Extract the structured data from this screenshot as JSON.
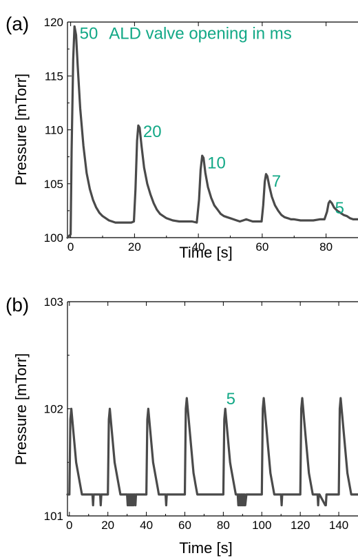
{
  "colors": {
    "line": "#4a4a4a",
    "annotation": "#12a886",
    "axis": "#000000"
  },
  "chart_data": [
    {
      "type": "line",
      "panel_label": "(a)",
      "xlabel": "Time [s]",
      "ylabel": "Pressure [mTorr]",
      "xlim": [
        -1,
        90
      ],
      "ylim": [
        100,
        120
      ],
      "xticks": [
        0,
        20,
        40,
        60,
        80
      ],
      "yticks": [
        100,
        105,
        110,
        115,
        120
      ],
      "grid": false,
      "series": [
        {
          "x": [
            -1,
            0,
            0.3,
            0.8,
            1.2,
            1.7,
            2.2,
            3,
            4,
            5,
            6,
            7,
            8,
            9,
            10,
            11,
            12,
            13,
            14,
            15,
            16,
            17,
            18,
            19,
            19.8,
            20.3,
            20.8,
            21.2,
            21.6,
            22.2,
            23,
            24,
            25,
            26,
            27,
            28,
            29,
            30,
            32,
            34,
            36,
            38,
            39.5,
            40.2,
            40.7,
            41.2,
            41.6,
            42.2,
            43,
            44,
            45,
            46,
            47,
            48,
            49,
            50,
            51,
            52,
            53,
            54,
            55,
            56,
            57,
            58,
            59,
            59.8,
            60.3,
            60.8,
            61.2,
            61.6,
            62.2,
            63,
            64,
            65,
            66,
            67,
            68,
            69,
            70,
            72,
            74,
            76,
            78,
            79.5,
            80.3,
            80.8,
            81.2,
            81.8,
            82.5,
            83.5,
            84.5,
            85.5,
            86.5,
            87.5,
            88.5,
            90
          ],
          "y": [
            100.0,
            100.3,
            108,
            116.5,
            119.6,
            118.8,
            116,
            112,
            108.5,
            106,
            104.5,
            103.5,
            102.8,
            102.3,
            102,
            101.8,
            101.6,
            101.5,
            101.4,
            101.4,
            101.4,
            101.4,
            101.4,
            101.4,
            101.5,
            104.5,
            109,
            110.4,
            110.2,
            108.5,
            106.5,
            105,
            104,
            103.2,
            102.6,
            102.2,
            102,
            101.8,
            101.6,
            101.5,
            101.5,
            101.5,
            101.4,
            103.5,
            106.3,
            107.6,
            107.4,
            106,
            104.7,
            103.7,
            103,
            102.6,
            102.2,
            102,
            101.9,
            101.8,
            101.7,
            101.6,
            101.5,
            101.6,
            101.7,
            101.6,
            101.5,
            101.5,
            101.5,
            101.5,
            103,
            105.2,
            105.9,
            105.7,
            104.8,
            103.8,
            103,
            102.5,
            102.1,
            101.9,
            101.8,
            101.7,
            101.7,
            101.6,
            101.6,
            101.6,
            101.7,
            101.7,
            102.4,
            103.2,
            103.4,
            103.2,
            102.8,
            102.5,
            102.3,
            102.1,
            102,
            101.8,
            101.7,
            101.7
          ]
        }
      ],
      "annotations": [
        {
          "text": "50",
          "x": 2.8,
          "y": 119.0
        },
        {
          "text": "ALD valve opening in ms",
          "x": 12,
          "y": 119.0
        },
        {
          "text": "20",
          "x": 22.7,
          "y": 109.9
        },
        {
          "text": "10",
          "x": 42.8,
          "y": 107.0
        },
        {
          "text": "7",
          "x": 63.0,
          "y": 105.3
        },
        {
          "text": "5",
          "x": 82.8,
          "y": 102.8
        }
      ]
    },
    {
      "type": "line",
      "panel_label": "(b)",
      "xlabel": "Time [s]",
      "ylabel": "Pressure [mTorr]",
      "xlim": [
        -1,
        150
      ],
      "ylim": [
        101,
        103
      ],
      "xticks": [
        0,
        20,
        40,
        60,
        80,
        100,
        120,
        140
      ],
      "yticks": [
        101,
        102,
        103
      ],
      "grid": false,
      "series": [
        {
          "x": [
            -1,
            0,
            0.5,
            1.0,
            1.5,
            2.0,
            2.5,
            3.0,
            3.5,
            4.0,
            4.5,
            5.0,
            5.5,
            6.0,
            6.5,
            7.0,
            8,
            12,
            12.3,
            12.6,
            13,
            16,
            16.3,
            16.6,
            17,
            20,
            20.5,
            21.0,
            21.5,
            22.0,
            22.5,
            23.0,
            23.5,
            24.0,
            24.5,
            25.0,
            25.5,
            26.0,
            26.5,
            27.0,
            28,
            30,
            30.3,
            30.6,
            30.9,
            31.2,
            31.5,
            31.8,
            32.1,
            32.4,
            32.7,
            33.0,
            33.3,
            33.6,
            34,
            34.3,
            34.6,
            35,
            40,
            40.5,
            41.0,
            41.5,
            42.0,
            42.5,
            43.0,
            43.5,
            44.0,
            44.5,
            45.0,
            45.5,
            46.0,
            46.5,
            47.0,
            48,
            50,
            50.3,
            50.6,
            51,
            60,
            60.5,
            61.0,
            61.5,
            62.0,
            62.5,
            63.0,
            63.5,
            64.0,
            64.5,
            65.0,
            65.5,
            66.0,
            66.5,
            67.0,
            68,
            80,
            80.5,
            81.0,
            81.5,
            82.0,
            82.5,
            83.0,
            83.5,
            84.0,
            84.5,
            85.0,
            85.5,
            86.0,
            86.5,
            87.0,
            87.5,
            87.8,
            88.1,
            88.4,
            88.7,
            89.0,
            89.3,
            89.6,
            89.9,
            90.2,
            90.5,
            90.8,
            91.1,
            91.4,
            92,
            100,
            100.5,
            101.0,
            101.5,
            102.0,
            102.5,
            103.0,
            103.5,
            104.0,
            104.5,
            105.0,
            105.5,
            106.0,
            106.5,
            107.0,
            108,
            110,
            110.3,
            110.6,
            111,
            120,
            120.5,
            121.0,
            121.5,
            122.0,
            122.5,
            123.0,
            123.5,
            124.0,
            124.5,
            125.0,
            125.5,
            126.0,
            126.5,
            127.0,
            128,
            129,
            129.3,
            129.6,
            130,
            133,
            133.3,
            133.6,
            134,
            140,
            140.5,
            141.0,
            141.5,
            142.0,
            142.5,
            143.0,
            143.5,
            144.0,
            144.5,
            145.0,
            145.5,
            146.0,
            146.5,
            147.0,
            148,
            150
          ],
          "y": [
            101.2,
            101.2,
            101.9,
            102.0,
            101.9,
            101.8,
            101.7,
            101.6,
            101.5,
            101.45,
            101.4,
            101.35,
            101.3,
            101.25,
            101.2,
            101.2,
            101.2,
            101.2,
            101.1,
            101.2,
            101.2,
            101.2,
            101.1,
            101.2,
            101.2,
            101.2,
            101.9,
            102.0,
            101.9,
            101.8,
            101.7,
            101.6,
            101.5,
            101.45,
            101.4,
            101.35,
            101.3,
            101.25,
            101.2,
            101.2,
            101.2,
            101.2,
            101.1,
            101.2,
            101.1,
            101.2,
            101.1,
            101.2,
            101.1,
            101.2,
            101.1,
            101.2,
            101.1,
            101.2,
            101.2,
            101.1,
            101.2,
            101.2,
            101.2,
            101.9,
            102.0,
            101.9,
            101.8,
            101.7,
            101.6,
            101.5,
            101.45,
            101.4,
            101.35,
            101.3,
            101.25,
            101.2,
            101.2,
            101.2,
            101.2,
            101.1,
            101.2,
            101.2,
            101.2,
            102.0,
            102.1,
            102.0,
            101.9,
            101.8,
            101.7,
            101.6,
            101.5,
            101.4,
            101.35,
            101.3,
            101.25,
            101.2,
            101.2,
            101.2,
            101.2,
            101.9,
            102.0,
            101.9,
            101.8,
            101.7,
            101.6,
            101.5,
            101.45,
            101.4,
            101.35,
            101.3,
            101.25,
            101.2,
            101.2,
            101.2,
            101.1,
            101.2,
            101.1,
            101.2,
            101.1,
            101.2,
            101.1,
            101.2,
            101.1,
            101.2,
            101.1,
            101.2,
            101.1,
            101.2,
            101.2,
            102.0,
            102.1,
            102.0,
            101.9,
            101.8,
            101.7,
            101.6,
            101.5,
            101.4,
            101.35,
            101.3,
            101.25,
            101.2,
            101.2,
            101.2,
            101.2,
            101.1,
            101.2,
            101.2,
            101.2,
            102.0,
            102.1,
            102.0,
            101.9,
            101.8,
            101.7,
            101.6,
            101.5,
            101.4,
            101.35,
            101.3,
            101.25,
            101.2,
            101.2,
            101.2,
            101.2,
            101.1,
            101.2,
            101.2,
            101.1,
            101.1,
            101.2,
            101.2,
            101.2,
            102.0,
            102.1,
            102.0,
            101.9,
            101.8,
            101.7,
            101.6,
            101.5,
            101.4,
            101.35,
            101.3,
            101.25,
            101.2,
            101.2,
            101.2,
            101.2
          ]
        }
      ],
      "annotations": [
        {
          "text": "5",
          "x": 81.5,
          "y": 102.1
        }
      ]
    }
  ]
}
